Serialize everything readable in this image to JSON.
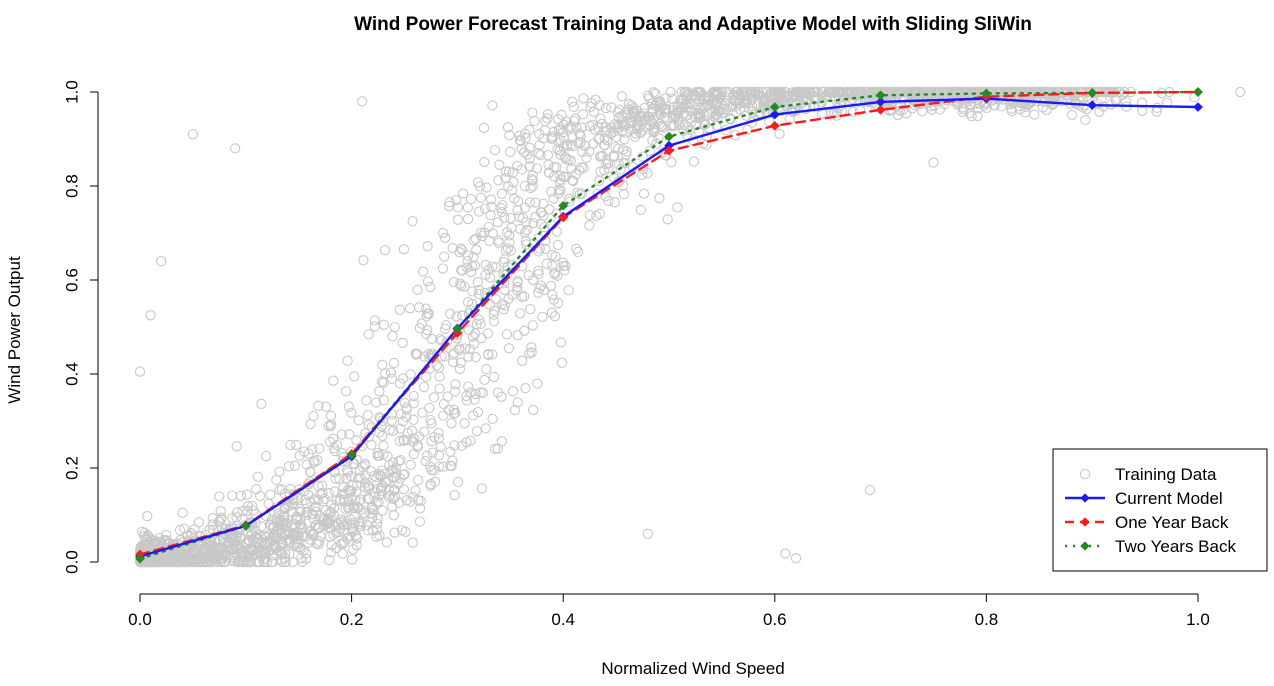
{
  "chart_data": {
    "type": "scatter",
    "title": "Wind Power Forecast Training Data and Adaptive Model with Sliding SliWin",
    "xlabel": "Normalized Wind Speed",
    "ylabel": "Wind Power Output",
    "xlim": [
      0.0,
      1.0
    ],
    "ylim": [
      0.0,
      1.0
    ],
    "x_ticks": [
      "0.0",
      "0.2",
      "0.4",
      "0.6",
      "0.8",
      "1.0"
    ],
    "y_ticks": [
      "0.0",
      "0.2",
      "0.4",
      "0.6",
      "0.8",
      "1.0"
    ],
    "grid": false,
    "legend_position": "bottom-right",
    "colors": {
      "training": "#c8c8c8",
      "current": "#1a1aff",
      "one_year": "#ff1a1a",
      "two_years": "#228b22"
    },
    "series": [
      {
        "name": "Training Data",
        "style": "open-circle",
        "description_points": "dense cloud around sigmoid curve",
        "sample_outliers": [
          {
            "x": 0.0,
            "y": 0.405
          },
          {
            "x": 0.02,
            "y": 0.64
          },
          {
            "x": 0.05,
            "y": 0.91
          },
          {
            "x": 0.09,
            "y": 0.88
          },
          {
            "x": 0.21,
            "y": 0.98
          },
          {
            "x": 0.69,
            "y": 0.153
          },
          {
            "x": 0.61,
            "y": 0.018
          },
          {
            "x": 0.62,
            "y": 0.008
          },
          {
            "x": 0.48,
            "y": 0.06
          },
          {
            "x": 0.75,
            "y": 0.85
          },
          {
            "x": 1.04,
            "y": 1.0
          },
          {
            "x": 0.01,
            "y": 0.525
          }
        ]
      },
      {
        "name": "Current Model",
        "style": "solid",
        "x": [
          0.0,
          0.1,
          0.2,
          0.3,
          0.4,
          0.5,
          0.6,
          0.7,
          0.8,
          0.9,
          1.0
        ],
        "y": [
          0.012,
          0.077,
          0.225,
          0.497,
          0.735,
          0.886,
          0.952,
          0.979,
          0.986,
          0.972,
          0.968
        ]
      },
      {
        "name": "One Year Back",
        "style": "dashed",
        "x": [
          0.0,
          0.1,
          0.2,
          0.3,
          0.4,
          0.5,
          0.6,
          0.7,
          0.8,
          0.9,
          1.0
        ],
        "y": [
          0.016,
          0.078,
          0.23,
          0.487,
          0.733,
          0.875,
          0.928,
          0.962,
          0.99,
          0.998,
          1.0
        ]
      },
      {
        "name": "Two Years Back",
        "style": "dotted",
        "x": [
          0.0,
          0.1,
          0.2,
          0.3,
          0.4,
          0.5,
          0.6,
          0.7,
          0.8,
          0.9,
          1.0
        ],
        "y": [
          0.007,
          0.077,
          0.228,
          0.496,
          0.758,
          0.905,
          0.968,
          0.993,
          0.997,
          0.998,
          1.0
        ]
      }
    ]
  }
}
